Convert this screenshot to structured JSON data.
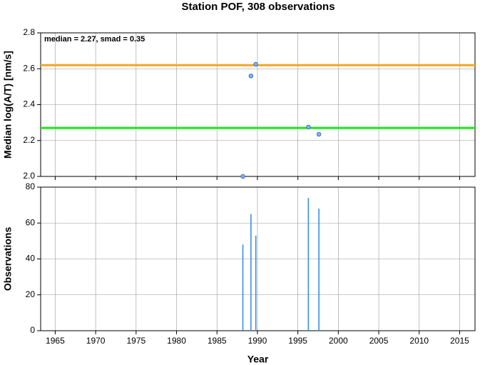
{
  "chart_data": [
    {
      "type": "scatter",
      "title": "Station POF, 308 observations",
      "annotation": "median = 2.27, smad = 0.35",
      "y_label": "Median log(A/T) [nm/s]",
      "x": [
        1988.2,
        1989.2,
        1989.8,
        1996.3,
        1997.6
      ],
      "series": [
        {
          "color": "#7fb2f0",
          "values": [
            2.0,
            2.56,
            2.625,
            2.275,
            2.235
          ]
        }
      ],
      "reference_lines": [
        {
          "value": 2.62,
          "color": "#f5a623"
        },
        {
          "value": 2.27,
          "color": "#19e619"
        }
      ],
      "xlim": [
        1963.2,
        2016.9
      ],
      "xticks": [
        1965,
        1970,
        1975,
        1980,
        1985,
        1990,
        1995,
        2000,
        2005,
        2010,
        2015
      ],
      "ylim": [
        2.0,
        2.8
      ],
      "yticks": [
        {
          "value": 2.0,
          "label": "2.0"
        },
        2.2,
        2.4,
        2.6,
        2.8
      ],
      "grid": true
    },
    {
      "type": "bar",
      "y_label": "Observations",
      "x_label": "Year",
      "x": [
        1988.2,
        1989.2,
        1989.8,
        1996.3,
        1997.6
      ],
      "series": [
        {
          "color": "#3a8ee6",
          "values": [
            48,
            65,
            53,
            74,
            68
          ]
        }
      ],
      "xlim": [
        1963.2,
        2016.9
      ],
      "xticks": [
        1965,
        1970,
        1975,
        1980,
        1985,
        1990,
        1995,
        2000,
        2005,
        2010,
        2015
      ],
      "ylim": [
        0,
        80
      ],
      "yticks": [
        0,
        20,
        40,
        60,
        80
      ],
      "grid": true
    }
  ]
}
